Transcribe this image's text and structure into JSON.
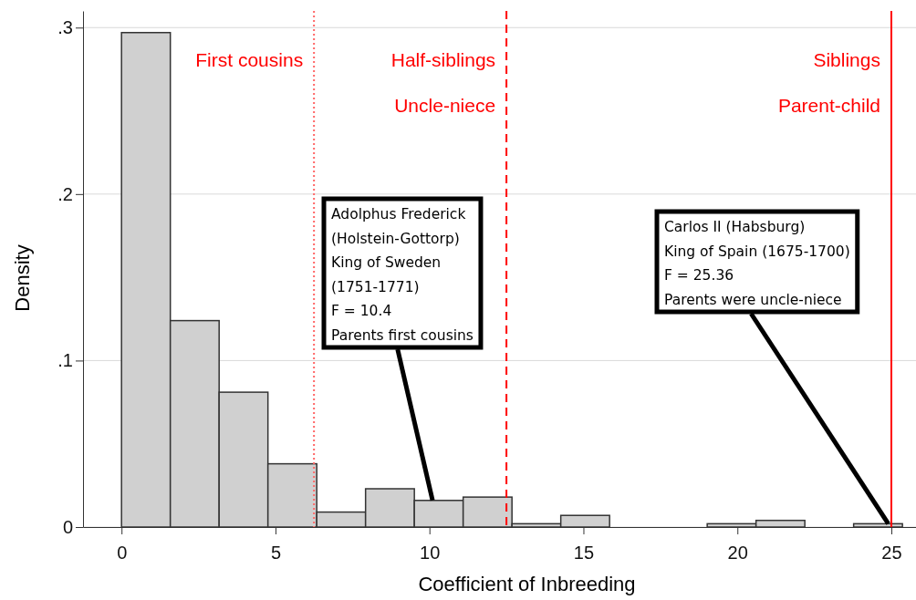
{
  "chart_data": {
    "type": "histogram",
    "xlabel": "Coefficient of Inbreeding",
    "ylabel": "Density",
    "bins": [
      0,
      1.585,
      3.17,
      4.755,
      6.34,
      7.925,
      9.51,
      11.095,
      12.68,
      14.265,
      15.85,
      17.435,
      19.02,
      20.605,
      22.19,
      23.775,
      25.36
    ],
    "values": [
      0.297,
      0.124,
      0.081,
      0.038,
      0.009,
      0.023,
      0.016,
      0.018,
      0.002,
      0.007,
      0,
      0,
      0.002,
      0.004,
      0,
      0.002
    ],
    "color": "#d0d0d0",
    "xlim": [
      -1.25,
      25.8
    ],
    "xticks": [
      0,
      5,
      10,
      15,
      20,
      25
    ],
    "ylim": [
      0,
      0.31
    ],
    "yticks": [
      0,
      {
        "value": 0.1,
        "label": ".1"
      },
      {
        "value": 0.2,
        "label": ".2"
      },
      {
        "value": 0.3,
        "label": ".3"
      }
    ],
    "grid": "y",
    "ref_lines": [
      {
        "axis": "x",
        "value": 6.25,
        "label": "First cousins",
        "color": "#ff6666",
        "line_style": "dotted"
      },
      {
        "axis": "x",
        "value": 12.5,
        "label": "Half-siblings\nUncle-niece",
        "color": "#ff0000",
        "line_style": "dashed"
      },
      {
        "axis": "x",
        "value": 25,
        "label": "Siblings\nParent-child",
        "color": "#ff0000",
        "line_style": "solid"
      }
    ],
    "annotations": [
      {
        "text": "Adolphus Frederick\n(Holstein-Gottorp)\nKing of Sweden\n(1751-1771)\nF = 10.4\nParents first cousins",
        "x": 10.1,
        "y": 0.016
      },
      {
        "text": "Carlos II (Habsburg)\nKing of Spain (1675-1700)\nF = 25.36\nParents were uncle-niece",
        "x": 24.9,
        "y": 0.002
      }
    ]
  }
}
